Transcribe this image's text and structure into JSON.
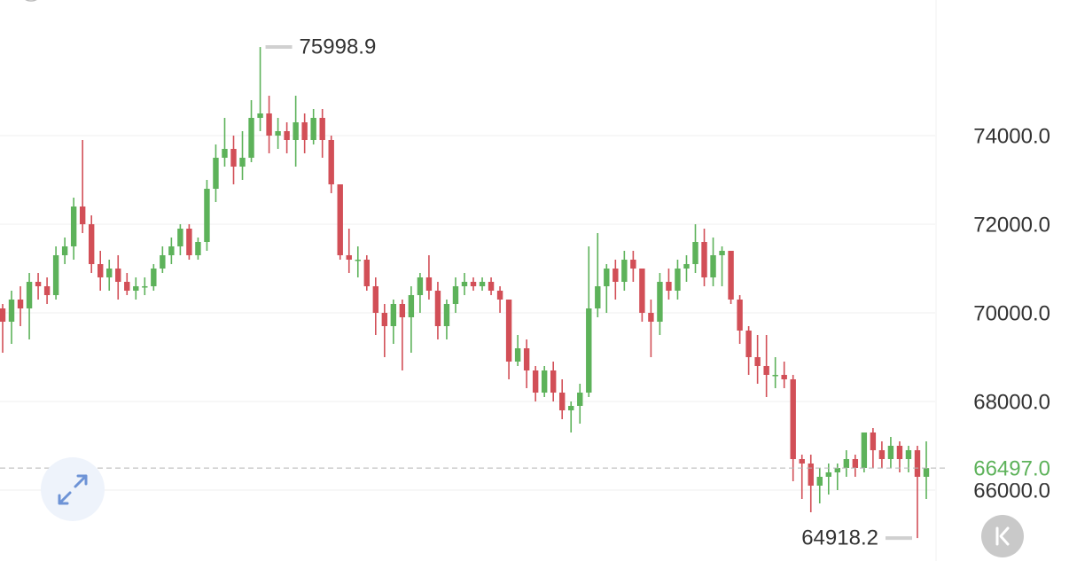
{
  "chart_data": {
    "type": "candlestick",
    "up_color": "#5db25a",
    "down_color": "#d24f57",
    "grid": true,
    "ylim": [
      64400,
      77060
    ],
    "yticks": [
      {
        "value": 66000,
        "label": "66000.0"
      },
      {
        "value": 68000,
        "label": "68000.0"
      },
      {
        "value": 70000,
        "label": "70000.0"
      },
      {
        "value": 72000,
        "label": "72000.0"
      },
      {
        "value": 74000,
        "label": "74000.0"
      }
    ],
    "last_price": {
      "value": 66497,
      "label": "66497.0"
    },
    "high_index": 29,
    "low_index": 103,
    "ohlc": [
      [
        70100,
        70200,
        69100,
        69800
      ],
      [
        69800,
        70500,
        69300,
        70300
      ],
      [
        70300,
        70600,
        69700,
        70100
      ],
      [
        70100,
        70900,
        69400,
        70700
      ],
      [
        70700,
        70900,
        70300,
        70600
      ],
      [
        70600,
        70800,
        70200,
        70400
      ],
      [
        70400,
        71500,
        70300,
        71300
      ],
      [
        71300,
        71700,
        71100,
        71500
      ],
      [
        71500,
        72600,
        71200,
        72400
      ],
      [
        72400,
        73900,
        71800,
        72000
      ],
      [
        72000,
        72200,
        70900,
        71100
      ],
      [
        71100,
        71400,
        70500,
        70800
      ],
      [
        70800,
        71200,
        70500,
        71000
      ],
      [
        71000,
        71300,
        70300,
        70700
      ],
      [
        70700,
        70900,
        70400,
        70500
      ],
      [
        70500,
        70800,
        70300,
        70600
      ],
      [
        70600,
        70800,
        70400,
        70600
      ],
      [
        70600,
        71100,
        70500,
        71000
      ],
      [
        71000,
        71500,
        70900,
        71300
      ],
      [
        71300,
        71700,
        71100,
        71500
      ],
      [
        71500,
        72000,
        71300,
        71900
      ],
      [
        71900,
        72000,
        71200,
        71300
      ],
      [
        71300,
        71700,
        71200,
        71600
      ],
      [
        71600,
        73000,
        71400,
        72800
      ],
      [
        72800,
        73800,
        72500,
        73500
      ],
      [
        73500,
        74400,
        73300,
        73700
      ],
      [
        73700,
        74000,
        72900,
        73300
      ],
      [
        73300,
        74100,
        73000,
        73500
      ],
      [
        73500,
        74800,
        73400,
        74400
      ],
      [
        74400,
        75998.9,
        74100,
        74500
      ],
      [
        74500,
        74900,
        73600,
        74000
      ],
      [
        74000,
        74400,
        73700,
        74100
      ],
      [
        74100,
        74300,
        73600,
        73900
      ],
      [
        73900,
        74900,
        73300,
        74300
      ],
      [
        74300,
        74500,
        73600,
        73900
      ],
      [
        73900,
        74600,
        73800,
        74400
      ],
      [
        74400,
        74600,
        73500,
        73900
      ],
      [
        73900,
        74000,
        72700,
        72900
      ],
      [
        72900,
        72900,
        71200,
        71300
      ],
      [
        71300,
        71900,
        70900,
        71200
      ],
      [
        71200,
        71500,
        70800,
        71200
      ],
      [
        71200,
        71300,
        70500,
        70600
      ],
      [
        70600,
        70800,
        69500,
        70000
      ],
      [
        70000,
        70200,
        69000,
        69700
      ],
      [
        69700,
        70300,
        69300,
        70200
      ],
      [
        70200,
        70300,
        68700,
        69900
      ],
      [
        69900,
        70600,
        69100,
        70400
      ],
      [
        70400,
        70900,
        70000,
        70800
      ],
      [
        70800,
        71300,
        70300,
        70500
      ],
      [
        70500,
        70700,
        69400,
        69700
      ],
      [
        69700,
        70300,
        69400,
        70200
      ],
      [
        70200,
        70800,
        70000,
        70600
      ],
      [
        70600,
        70900,
        70400,
        70700
      ],
      [
        70700,
        70800,
        70500,
        70600
      ],
      [
        70600,
        70800,
        70500,
        70700
      ],
      [
        70700,
        70800,
        70400,
        70500
      ],
      [
        70500,
        70600,
        70000,
        70300
      ],
      [
        70300,
        70300,
        68500,
        68900
      ],
      [
        68900,
        69500,
        68800,
        69200
      ],
      [
        69200,
        69400,
        68300,
        68700
      ],
      [
        68700,
        68800,
        68000,
        68200
      ],
      [
        68200,
        68800,
        68100,
        68700
      ],
      [
        68700,
        68900,
        68000,
        68200
      ],
      [
        68200,
        68500,
        67600,
        67800
      ],
      [
        67800,
        68000,
        67300,
        67900
      ],
      [
        67900,
        68400,
        67500,
        68200
      ],
      [
        68200,
        71500,
        68100,
        70100
      ],
      [
        70100,
        71800,
        69900,
        70600
      ],
      [
        70600,
        71100,
        70000,
        71000
      ],
      [
        71000,
        71200,
        70300,
        70700
      ],
      [
        70700,
        71400,
        70500,
        71200
      ],
      [
        71200,
        71400,
        70700,
        71000
      ],
      [
        71000,
        71000,
        69800,
        70000
      ],
      [
        70000,
        70300,
        69000,
        69800
      ],
      [
        69800,
        70900,
        69500,
        70700
      ],
      [
        70700,
        71000,
        70300,
        70500
      ],
      [
        70500,
        71200,
        70300,
        71000
      ],
      [
        71000,
        71300,
        70700,
        71100
      ],
      [
        71100,
        72000,
        70900,
        71600
      ],
      [
        71600,
        71900,
        70600,
        70800
      ],
      [
        70800,
        71700,
        70600,
        71300
      ],
      [
        71300,
        71500,
        70600,
        71400
      ],
      [
        71400,
        71400,
        70200,
        70300
      ],
      [
        70300,
        70400,
        69300,
        69600
      ],
      [
        69600,
        69700,
        68600,
        69000
      ],
      [
        69000,
        69500,
        68400,
        68800
      ],
      [
        68800,
        69500,
        68100,
        68600
      ],
      [
        68600,
        69000,
        68300,
        68600
      ],
      [
        68600,
        68900,
        68300,
        68500
      ],
      [
        68500,
        68600,
        66200,
        66700
      ],
      [
        66700,
        66800,
        65800,
        66600
      ],
      [
        66600,
        66800,
        65500,
        66100
      ],
      [
        66100,
        66500,
        65700,
        66300
      ],
      [
        66300,
        66600,
        65900,
        66400
      ],
      [
        66400,
        66600,
        66000,
        66500
      ],
      [
        66500,
        66900,
        66300,
        66700
      ],
      [
        66700,
        66800,
        66300,
        66500
      ],
      [
        66500,
        67300,
        66400,
        67300
      ],
      [
        67300,
        67400,
        66500,
        66900
      ],
      [
        66900,
        67100,
        66500,
        66700
      ],
      [
        66700,
        67200,
        66500,
        67000
      ],
      [
        67000,
        67100,
        66400,
        66700
      ],
      [
        66700,
        67000,
        66400,
        66900
      ],
      [
        66900,
        67000,
        64918.2,
        66300
      ],
      [
        66300,
        67100,
        65800,
        66497
      ]
    ]
  }
}
